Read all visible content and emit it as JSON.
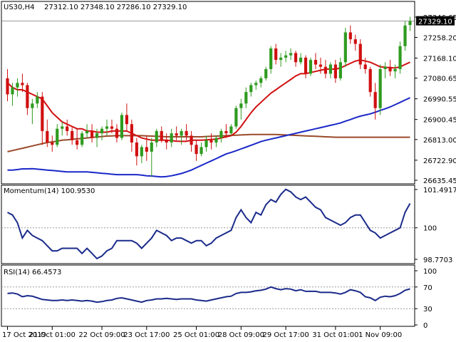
{
  "main": {
    "symbol": "US30,H4",
    "ohlc": "27312.10 27348.10 27286.10 27329.10",
    "price_ticks": [
      "27346.65",
      "27258.20",
      "27168.10",
      "27080.65",
      "26990.55",
      "26900.45",
      "26813.00",
      "26722.90",
      "26635.45"
    ],
    "current_price": "27329.10"
  },
  "momentum": {
    "label": "Momentum(14) 100.9530",
    "ticks": [
      "101.4917",
      "100",
      "98.7703"
    ]
  },
  "rsi": {
    "label": "RSI(14) 66.4573",
    "ticks": [
      "100",
      "70",
      "30",
      "0"
    ]
  },
  "time_ticks": [
    "17 Oct 2019",
    "21 Oct 01:00",
    "22 Oct 09:00",
    "23 Oct 17:00",
    "25 Oct 01:00",
    "28 Oct 09:00",
    "29 Oct 17:00",
    "31 Oct 01:00",
    "1 Nov 09:00"
  ],
  "colors": {
    "bull": "#2e9b1f",
    "bear": "#d01010",
    "ma_fast": "#d01010",
    "ma_mid": "#1a28c8",
    "ma_slow": "#9a4a2a",
    "indicator": "#1a2a8a",
    "grid": "#999999"
  },
  "chart_data": [
    {
      "type": "candlestick",
      "ylim": [
        26635.45,
        27346.65
      ],
      "candles": [
        [
          27080,
          27120,
          26980,
          27010
        ],
        [
          27010,
          27060,
          26960,
          27040
        ],
        [
          27040,
          27080,
          27000,
          27060
        ],
        [
          27060,
          27100,
          27020,
          27050
        ],
        [
          27050,
          27060,
          26920,
          26950
        ],
        [
          26950,
          26990,
          26880,
          26970
        ],
        [
          26970,
          27020,
          26950,
          27000
        ],
        [
          27000,
          27020,
          26790,
          26850
        ],
        [
          26850,
          26900,
          26780,
          26800
        ],
        [
          26800,
          26830,
          26760,
          26790
        ],
        [
          26790,
          26880,
          26780,
          26860
        ],
        [
          26860,
          26890,
          26830,
          26870
        ],
        [
          26870,
          26900,
          26830,
          26850
        ],
        [
          26850,
          26870,
          26790,
          26810
        ],
        [
          26810,
          26860,
          26770,
          26790
        ],
        [
          26790,
          26850,
          26780,
          26840
        ],
        [
          26840,
          26880,
          26820,
          26850
        ],
        [
          26850,
          26880,
          26800,
          26820
        ],
        [
          26820,
          26860,
          26780,
          26840
        ],
        [
          26840,
          26870,
          26810,
          26860
        ],
        [
          26860,
          26900,
          26830,
          26870
        ],
        [
          26870,
          26900,
          26840,
          26860
        ],
        [
          26860,
          26880,
          26800,
          26820
        ],
        [
          26820,
          26930,
          26810,
          26920
        ],
        [
          26920,
          26970,
          26850,
          26880
        ],
        [
          26880,
          26900,
          26760,
          26800
        ],
        [
          26800,
          26820,
          26700,
          26740
        ],
        [
          26740,
          26790,
          26710,
          26780
        ],
        [
          26780,
          26830,
          26720,
          26760
        ],
        [
          26760,
          26820,
          26650,
          26800
        ],
        [
          26800,
          26860,
          26780,
          26850
        ],
        [
          26850,
          26870,
          26800,
          26810
        ],
        [
          26810,
          26840,
          26770,
          26800
        ],
        [
          26800,
          26860,
          26780,
          26840
        ],
        [
          26840,
          26870,
          26810,
          26830
        ],
        [
          26830,
          26860,
          26790,
          26850
        ],
        [
          26850,
          26880,
          26810,
          26830
        ],
        [
          26830,
          26850,
          26760,
          26790
        ],
        [
          26790,
          26810,
          26720,
          26750
        ],
        [
          26750,
          26800,
          26740,
          26780
        ],
        [
          26780,
          26830,
          26760,
          26810
        ],
        [
          26810,
          26840,
          26770,
          26800
        ],
        [
          26800,
          26830,
          26780,
          26820
        ],
        [
          26820,
          26860,
          26800,
          26850
        ],
        [
          26850,
          26880,
          26820,
          26840
        ],
        [
          26840,
          26880,
          26830,
          26870
        ],
        [
          26870,
          26960,
          26860,
          26950
        ],
        [
          26950,
          26990,
          26900,
          26970
        ],
        [
          26970,
          27040,
          26950,
          27020
        ],
        [
          27020,
          27060,
          27000,
          27050
        ],
        [
          27050,
          27070,
          27030,
          27060
        ],
        [
          27060,
          27090,
          27040,
          27080
        ],
        [
          27080,
          27130,
          27070,
          27120
        ],
        [
          27120,
          27220,
          27100,
          27210
        ],
        [
          27210,
          27230,
          27140,
          27160
        ],
        [
          27160,
          27190,
          27130,
          27170
        ],
        [
          27170,
          27200,
          27150,
          27180
        ],
        [
          27180,
          27210,
          27160,
          27190
        ],
        [
          27190,
          27200,
          27130,
          27150
        ],
        [
          27150,
          27190,
          27140,
          27170
        ],
        [
          27170,
          27180,
          27080,
          27100
        ],
        [
          27100,
          27170,
          27090,
          27160
        ],
        [
          27160,
          27190,
          27120,
          27140
        ],
        [
          27140,
          27170,
          27100,
          27130
        ],
        [
          27130,
          27160,
          27080,
          27100
        ],
        [
          27100,
          27150,
          27080,
          27140
        ],
        [
          27140,
          27160,
          27060,
          27080
        ],
        [
          27080,
          27170,
          27070,
          27150
        ],
        [
          27150,
          27300,
          27130,
          27280
        ],
        [
          27280,
          27310,
          27230,
          27250
        ],
        [
          27250,
          27270,
          27200,
          27230
        ],
        [
          27230,
          27250,
          27120,
          27140
        ],
        [
          27140,
          27170,
          27100,
          27120
        ],
        [
          27120,
          27130,
          27000,
          27020
        ],
        [
          27020,
          27060,
          26900,
          26950
        ],
        [
          26950,
          27140,
          26920,
          27120
        ],
        [
          27120,
          27150,
          27080,
          27130
        ],
        [
          27130,
          27160,
          27090,
          27110
        ],
        [
          27110,
          27140,
          27080,
          27120
        ],
        [
          27120,
          27240,
          27100,
          27220
        ],
        [
          27220,
          27330,
          27200,
          27310
        ],
        [
          27312.1,
          27348.1,
          27286.1,
          27329.1
        ]
      ],
      "ma_fast": [
        27060,
        27040,
        27030,
        27030,
        27020,
        27010,
        27000,
        26990,
        26960,
        26930,
        26910,
        26890,
        26880,
        26870,
        26860,
        26860,
        26850,
        26850,
        26845,
        26845,
        26845,
        26850,
        26850,
        26850,
        26850,
        26840,
        26830,
        26820,
        26815,
        26810,
        26810,
        26810,
        26810,
        26808,
        26806,
        26805,
        26805,
        26810,
        26810,
        26810,
        26812,
        26813,
        26815,
        26820,
        26825,
        26830,
        26845,
        26870,
        26900,
        26930,
        26955,
        26975,
        26995,
        27015,
        27030,
        27045,
        27060,
        27075,
        27090,
        27100,
        27100,
        27105,
        27110,
        27115,
        27120,
        27120,
        27120,
        27125,
        27135,
        27145,
        27155,
        27160,
        27155,
        27150,
        27140,
        27130,
        27128,
        27126,
        27125,
        27130,
        27140,
        27150
      ],
      "ma_mid": [
        26680,
        26680,
        26682,
        26685,
        26685,
        26686,
        26684,
        26682,
        26680,
        26678,
        26676,
        26674,
        26672,
        26672,
        26672,
        26672,
        26672,
        26670,
        26668,
        26666,
        26664,
        26662,
        26660,
        26660,
        26660,
        26660,
        26660,
        26658,
        26655,
        26654,
        26652,
        26650,
        26652,
        26655,
        26660,
        26665,
        26672,
        26680,
        26690,
        26700,
        26710,
        26720,
        26730,
        26740,
        26750,
        26757,
        26764,
        26772,
        26780,
        26788,
        26796,
        26804,
        26810,
        26815,
        26820,
        26825,
        26830,
        26835,
        26840,
        26845,
        26850,
        26855,
        26860,
        26865,
        26870,
        26875,
        26880,
        26885,
        26893,
        26900,
        26908,
        26915,
        26920,
        26925,
        26932,
        26940,
        26947,
        26955,
        26965,
        26975,
        26985,
        26995
      ],
      "ma_slow": [
        26760,
        26765,
        26770,
        26775,
        26780,
        26785,
        26790,
        26795,
        26800,
        26803,
        26806,
        26810,
        26812,
        26814,
        26816,
        26818,
        26820,
        26822,
        26824,
        26826,
        26828,
        26829,
        26830,
        26830,
        26830,
        26830,
        26830,
        26830,
        26829,
        26828,
        26827,
        26826,
        26825,
        26825,
        26825,
        26825,
        26825,
        26825,
        26825,
        26825,
        26826,
        26827,
        26828,
        26829,
        26830,
        26831,
        26832,
        26833,
        26834,
        26835,
        26835,
        26835,
        26835,
        26835,
        26835,
        26834,
        26833,
        26832,
        26831,
        26830,
        26829,
        26828,
        26827,
        26826,
        26825,
        26824,
        26823,
        26823,
        26823,
        26823,
        26823,
        26823,
        26823,
        26823,
        26823,
        26823,
        26823,
        26823,
        26823,
        26823,
        26823,
        26823
      ]
    },
    {
      "type": "line",
      "name": "Momentum(14)",
      "ylim": [
        98.7703,
        101.4917
      ],
      "reference": 100,
      "values": [
        100.6,
        100.5,
        100.2,
        99.6,
        99.9,
        99.7,
        99.6,
        99.5,
        99.3,
        99.1,
        99.1,
        99.2,
        99.2,
        99.2,
        99.2,
        99.0,
        99.2,
        99.0,
        98.8,
        98.9,
        99.1,
        99.2,
        99.5,
        99.5,
        99.5,
        99.5,
        99.4,
        99.2,
        99.4,
        99.6,
        99.9,
        99.8,
        99.7,
        99.5,
        99.6,
        99.6,
        99.5,
        99.4,
        99.5,
        99.5,
        99.3,
        99.4,
        99.6,
        99.7,
        99.8,
        99.9,
        100.4,
        100.7,
        100.4,
        100.2,
        100.6,
        100.5,
        100.9,
        101.1,
        101.0,
        101.3,
        101.5,
        101.4,
        101.2,
        101.1,
        101.2,
        101.0,
        100.8,
        100.7,
        100.4,
        100.3,
        100.2,
        100.1,
        100.2,
        100.4,
        100.5,
        100.5,
        100.2,
        99.9,
        99.8,
        99.6,
        99.7,
        99.8,
        99.9,
        100.0,
        100.6,
        100.95
      ]
    },
    {
      "type": "line",
      "name": "RSI(14)",
      "ylim": [
        0,
        100
      ],
      "levels": [
        70,
        30
      ],
      "values": [
        58,
        59,
        57,
        52,
        54,
        53,
        50,
        47,
        46,
        45,
        45,
        46,
        45,
        46,
        45,
        44,
        45,
        44,
        42,
        43,
        45,
        46,
        49,
        50,
        48,
        46,
        44,
        42,
        45,
        46,
        48,
        48,
        49,
        48,
        47,
        48,
        48,
        48,
        46,
        45,
        44,
        46,
        48,
        50,
        52,
        53,
        58,
        60,
        60,
        61,
        63,
        64,
        66,
        70,
        67,
        65,
        67,
        66,
        63,
        65,
        62,
        62,
        62,
        60,
        60,
        60,
        59,
        57,
        60,
        65,
        63,
        60,
        52,
        50,
        45,
        51,
        53,
        52,
        54,
        58,
        64,
        66.46
      ]
    }
  ]
}
